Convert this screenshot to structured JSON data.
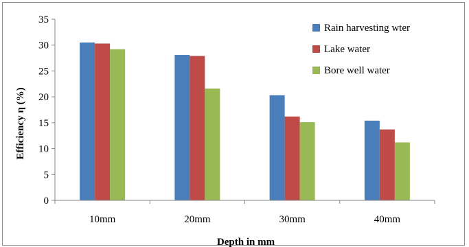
{
  "chart_data": {
    "type": "bar",
    "categories": [
      "10mm",
      "20mm",
      "30mm",
      "40mm"
    ],
    "series": [
      {
        "name": "Rain harvesting wter",
        "values": [
          30.5,
          28.1,
          20.3,
          15.4
        ],
        "color": "#4a7ebb"
      },
      {
        "name": "Lake water",
        "values": [
          30.3,
          27.9,
          16.2,
          13.7
        ],
        "color": "#be4b48"
      },
      {
        "name": "Bore well water",
        "values": [
          29.2,
          21.6,
          15.1,
          11.2
        ],
        "color": "#98b954"
      }
    ],
    "xlabel": "Depth in mm",
    "ylabel": "Efficiency η (%)",
    "ylim": [
      0,
      35
    ],
    "yticks": [
      "0",
      "5",
      "10",
      "15",
      "20",
      "25",
      "30",
      "35"
    ],
    "legend_position": "top-right",
    "grid": false
  }
}
